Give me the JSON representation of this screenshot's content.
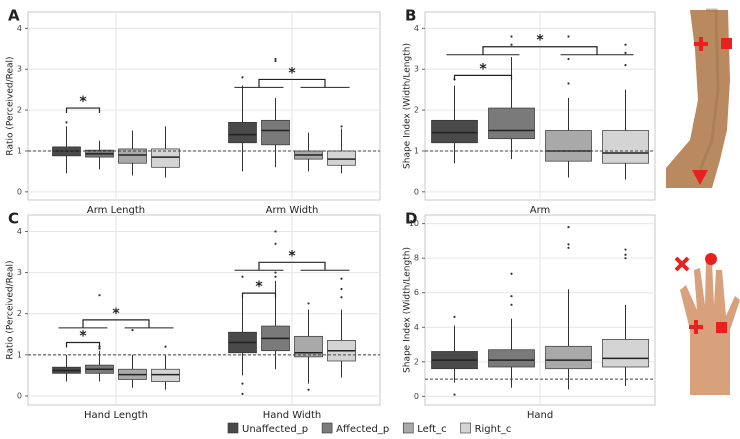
{
  "chart_data": [
    {
      "type": "box",
      "panel": "A",
      "y_label": "Ratio (Perceived/Real)",
      "ylim": [
        -0.2,
        4.4
      ],
      "yticks": [
        0,
        1,
        2,
        3,
        4
      ],
      "hline": 1,
      "grid": true,
      "categories": [
        "Arm Length",
        "Arm Width"
      ],
      "annotations": [
        "*",
        "*"
      ],
      "series": [
        {
          "name": "Unaffected_p",
          "color": "#4a4a4a",
          "values": [
            {
              "min": 0.45,
              "q1": 0.88,
              "median": 1.0,
              "q3": 1.1,
              "max": 1.6,
              "outliers": [
                1.7
              ]
            },
            {
              "min": 0.5,
              "q1": 1.2,
              "median": 1.4,
              "q3": 1.7,
              "max": 2.6,
              "outliers": [
                2.8
              ]
            }
          ]
        },
        {
          "name": "Affected_p",
          "color": "#7a7a7a",
          "values": [
            {
              "min": 0.55,
              "q1": 0.85,
              "median": 0.93,
              "q3": 1.02,
              "max": 1.25,
              "outliers": []
            },
            {
              "min": 0.6,
              "q1": 1.15,
              "median": 1.5,
              "q3": 1.75,
              "max": 2.3,
              "outliers": [
                3.2,
                3.25
              ]
            }
          ]
        },
        {
          "name": "Left_c",
          "color": "#a9a9a9",
          "values": [
            {
              "min": 0.4,
              "q1": 0.7,
              "median": 0.9,
              "q3": 1.05,
              "max": 1.5,
              "outliers": []
            },
            {
              "min": 0.5,
              "q1": 0.8,
              "median": 0.9,
              "q3": 1.0,
              "max": 1.45,
              "outliers": []
            }
          ]
        },
        {
          "name": "Right_c",
          "color": "#d4d4d4",
          "values": [
            {
              "min": 0.35,
              "q1": 0.6,
              "median": 0.85,
              "q3": 1.05,
              "max": 1.6,
              "outliers": []
            },
            {
              "min": 0.45,
              "q1": 0.65,
              "median": 0.8,
              "q3": 1.0,
              "max": 1.55,
              "outliers": [
                1.6
              ]
            }
          ]
        }
      ]
    },
    {
      "type": "box",
      "panel": "B",
      "y_label": "Shape Index (Width/Length)",
      "ylim": [
        -0.2,
        4.4
      ],
      "yticks": [
        0,
        1,
        2,
        3,
        4
      ],
      "hline": 1,
      "grid": true,
      "categories": [
        "Arm"
      ],
      "annotations": [
        "*",
        "*"
      ],
      "series": [
        {
          "name": "Unaffected_p",
          "color": "#4a4a4a",
          "values": [
            {
              "min": 0.7,
              "q1": 1.2,
              "median": 1.45,
              "q3": 1.75,
              "max": 2.6,
              "outliers": [
                2.75
              ]
            }
          ]
        },
        {
          "name": "Affected_p",
          "color": "#7a7a7a",
          "values": [
            {
              "min": 0.8,
              "q1": 1.3,
              "median": 1.5,
              "q3": 2.05,
              "max": 3.3,
              "outliers": [
                3.6,
                3.8
              ]
            }
          ]
        },
        {
          "name": "Left_c",
          "color": "#a9a9a9",
          "values": [
            {
              "min": 0.35,
              "q1": 0.75,
              "median": 1.0,
              "q3": 1.5,
              "max": 2.3,
              "outliers": [
                2.65,
                3.25,
                3.8
              ]
            }
          ]
        },
        {
          "name": "Right_c",
          "color": "#d4d4d4",
          "values": [
            {
              "min": 0.3,
              "q1": 0.7,
              "median": 0.95,
              "q3": 1.5,
              "max": 2.5,
              "outliers": [
                3.1,
                3.4,
                3.6
              ]
            }
          ]
        }
      ]
    },
    {
      "type": "box",
      "panel": "C",
      "y_label": "Ratio (Perceived/Real)",
      "ylim": [
        -0.22,
        4.4
      ],
      "yticks": [
        0,
        1,
        2,
        3,
        4
      ],
      "hline": 1,
      "grid": true,
      "categories": [
        "Hand Length",
        "Hand Width"
      ],
      "annotations": [
        "*",
        "*",
        "*",
        "*"
      ],
      "series": [
        {
          "name": "Unaffected_p",
          "color": "#4a4a4a",
          "values": [
            {
              "min": 0.35,
              "q1": 0.55,
              "median": 0.62,
              "q3": 0.7,
              "max": 1.0,
              "outliers": []
            },
            {
              "min": 0.5,
              "q1": 1.05,
              "median": 1.3,
              "q3": 1.55,
              "max": 2.5,
              "outliers": [
                2.9,
                0.3,
                0.05
              ]
            }
          ]
        },
        {
          "name": "Affected_p",
          "color": "#7a7a7a",
          "values": [
            {
              "min": 0.35,
              "q1": 0.55,
              "median": 0.65,
              "q3": 0.75,
              "max": 1.1,
              "outliers": [
                1.15,
                1.2,
                2.45
              ]
            },
            {
              "min": 0.65,
              "q1": 1.1,
              "median": 1.4,
              "q3": 1.7,
              "max": 2.8,
              "outliers": [
                2.9,
                3.0,
                3.7,
                4.0
              ]
            }
          ]
        },
        {
          "name": "Left_c",
          "color": "#a9a9a9",
          "values": [
            {
              "min": 0.2,
              "q1": 0.4,
              "median": 0.52,
              "q3": 0.65,
              "max": 1.0,
              "outliers": [
                1.6
              ]
            },
            {
              "min": 0.3,
              "q1": 0.95,
              "median": 1.05,
              "q3": 1.45,
              "max": 2.1,
              "outliers": [
                2.25,
                0.15
              ]
            }
          ]
        },
        {
          "name": "Right_c",
          "color": "#d4d4d4",
          "values": [
            {
              "min": 0.15,
              "q1": 0.35,
              "median": 0.52,
              "q3": 0.65,
              "max": 1.0,
              "outliers": [
                1.2
              ]
            },
            {
              "min": 0.45,
              "q1": 0.85,
              "median": 1.1,
              "q3": 1.35,
              "max": 2.1,
              "outliers": [
                2.4,
                2.6,
                2.85
              ]
            }
          ]
        }
      ]
    },
    {
      "type": "box",
      "panel": "D",
      "y_label": "Shape Index (Width/Length)",
      "ylim": [
        -0.5,
        10.5
      ],
      "yticks": [
        0,
        2,
        4,
        6,
        8,
        10
      ],
      "hline": 1,
      "grid": true,
      "categories": [
        "Hand"
      ],
      "annotations": [],
      "series": [
        {
          "name": "Unaffected_p",
          "color": "#4a4a4a",
          "values": [
            {
              "min": 0.8,
              "q1": 1.6,
              "median": 2.1,
              "q3": 2.6,
              "max": 4.1,
              "outliers": [
                4.6,
                0.1
              ]
            }
          ]
        },
        {
          "name": "Affected_p",
          "color": "#7a7a7a",
          "values": [
            {
              "min": 0.5,
              "q1": 1.7,
              "median": 2.1,
              "q3": 2.7,
              "max": 4.5,
              "outliers": [
                5.3,
                5.8,
                7.1
              ]
            }
          ]
        },
        {
          "name": "Left_c",
          "color": "#a9a9a9",
          "values": [
            {
              "min": 0.4,
              "q1": 1.6,
              "median": 2.1,
              "q3": 2.9,
              "max": 6.2,
              "outliers": [
                8.6,
                8.8,
                9.8
              ]
            }
          ]
        },
        {
          "name": "Right_c",
          "color": "#d4d4d4",
          "values": [
            {
              "min": 0.6,
              "q1": 1.7,
              "median": 2.2,
              "q3": 3.3,
              "max": 5.3,
              "outliers": [
                8.0,
                8.2,
                8.5
              ]
            }
          ]
        }
      ]
    }
  ]
}
